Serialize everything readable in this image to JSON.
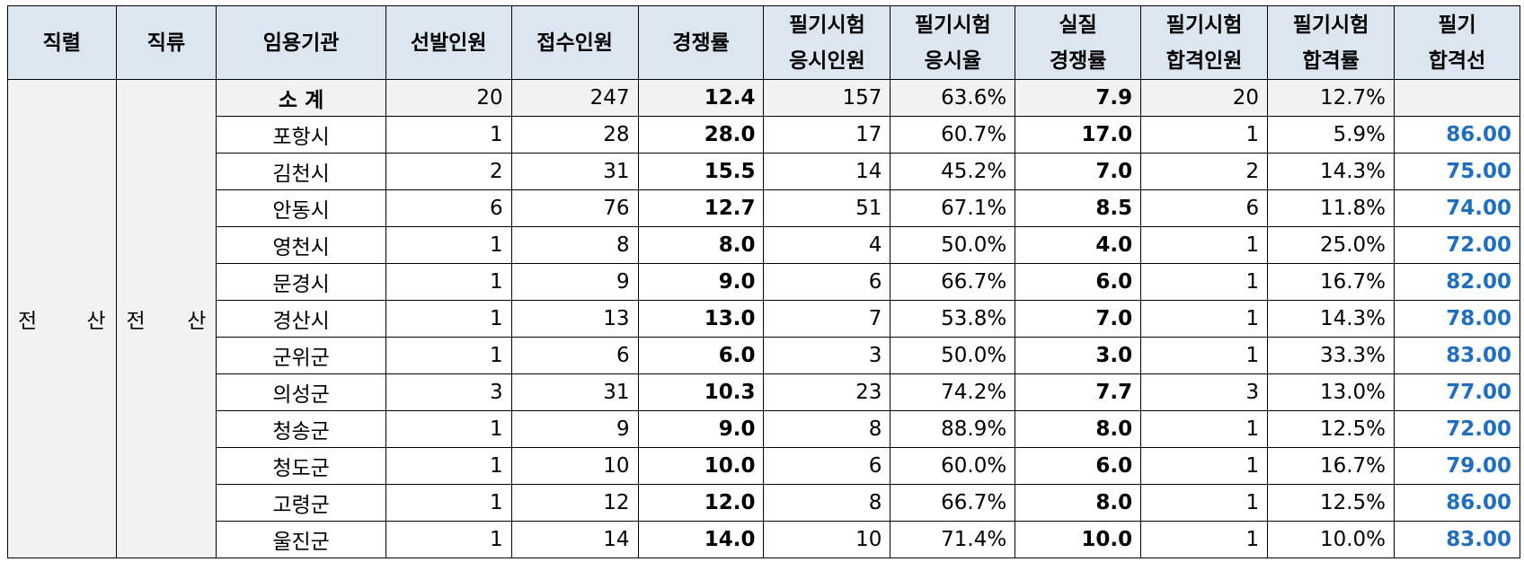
{
  "headers": [
    {
      "lines": [
        "직렬"
      ]
    },
    {
      "lines": [
        "직류"
      ]
    },
    {
      "lines": [
        "임용기관"
      ]
    },
    {
      "lines": [
        "선발인원"
      ]
    },
    {
      "lines": [
        "접수인원"
      ]
    },
    {
      "lines": [
        "경쟁률"
      ]
    },
    {
      "lines": [
        "필기시험",
        "응시인원"
      ]
    },
    {
      "lines": [
        "필기시험",
        "응시율"
      ]
    },
    {
      "lines": [
        "실질",
        "경쟁률"
      ]
    },
    {
      "lines": [
        "필기시험",
        "합격인원"
      ]
    },
    {
      "lines": [
        "필기시험",
        "합격률"
      ]
    },
    {
      "lines": [
        "필기",
        "합격선"
      ]
    }
  ],
  "group": {
    "series": [
      "전",
      "산"
    ],
    "category": [
      "전",
      "산"
    ]
  },
  "subtotal": {
    "agency": "소  계",
    "selected": "20",
    "applicants": "247",
    "ratio": "12.4",
    "exam_takers": "157",
    "take_rate": "63.6%",
    "real_ratio": "7.9",
    "passed": "20",
    "pass_rate": "12.7%",
    "cutoff": ""
  },
  "rows": [
    {
      "agency": "포항시",
      "selected": "1",
      "applicants": "28",
      "ratio": "28.0",
      "exam_takers": "17",
      "take_rate": "60.7%",
      "real_ratio": "17.0",
      "passed": "1",
      "pass_rate": "5.9%",
      "cutoff": "86.00"
    },
    {
      "agency": "김천시",
      "selected": "2",
      "applicants": "31",
      "ratio": "15.5",
      "exam_takers": "14",
      "take_rate": "45.2%",
      "real_ratio": "7.0",
      "passed": "2",
      "pass_rate": "14.3%",
      "cutoff": "75.00"
    },
    {
      "agency": "안동시",
      "selected": "6",
      "applicants": "76",
      "ratio": "12.7",
      "exam_takers": "51",
      "take_rate": "67.1%",
      "real_ratio": "8.5",
      "passed": "6",
      "pass_rate": "11.8%",
      "cutoff": "74.00"
    },
    {
      "agency": "영천시",
      "selected": "1",
      "applicants": "8",
      "ratio": "8.0",
      "exam_takers": "4",
      "take_rate": "50.0%",
      "real_ratio": "4.0",
      "passed": "1",
      "pass_rate": "25.0%",
      "cutoff": "72.00"
    },
    {
      "agency": "문경시",
      "selected": "1",
      "applicants": "9",
      "ratio": "9.0",
      "exam_takers": "6",
      "take_rate": "66.7%",
      "real_ratio": "6.0",
      "passed": "1",
      "pass_rate": "16.7%",
      "cutoff": "82.00"
    },
    {
      "agency": "경산시",
      "selected": "1",
      "applicants": "13",
      "ratio": "13.0",
      "exam_takers": "7",
      "take_rate": "53.8%",
      "real_ratio": "7.0",
      "passed": "1",
      "pass_rate": "14.3%",
      "cutoff": "78.00"
    },
    {
      "agency": "군위군",
      "selected": "1",
      "applicants": "6",
      "ratio": "6.0",
      "exam_takers": "3",
      "take_rate": "50.0%",
      "real_ratio": "3.0",
      "passed": "1",
      "pass_rate": "33.3%",
      "cutoff": "83.00"
    },
    {
      "agency": "의성군",
      "selected": "3",
      "applicants": "31",
      "ratio": "10.3",
      "exam_takers": "23",
      "take_rate": "74.2%",
      "real_ratio": "7.7",
      "passed": "3",
      "pass_rate": "13.0%",
      "cutoff": "77.00"
    },
    {
      "agency": "청송군",
      "selected": "1",
      "applicants": "9",
      "ratio": "9.0",
      "exam_takers": "8",
      "take_rate": "88.9%",
      "real_ratio": "8.0",
      "passed": "1",
      "pass_rate": "12.5%",
      "cutoff": "72.00"
    },
    {
      "agency": "청도군",
      "selected": "1",
      "applicants": "10",
      "ratio": "10.0",
      "exam_takers": "6",
      "take_rate": "60.0%",
      "real_ratio": "6.0",
      "passed": "1",
      "pass_rate": "16.7%",
      "cutoff": "79.00"
    },
    {
      "agency": "고령군",
      "selected": "1",
      "applicants": "12",
      "ratio": "12.0",
      "exam_takers": "8",
      "take_rate": "66.7%",
      "real_ratio": "8.0",
      "passed": "1",
      "pass_rate": "12.5%",
      "cutoff": "86.00"
    },
    {
      "agency": "울진군",
      "selected": "1",
      "applicants": "14",
      "ratio": "14.0",
      "exam_takers": "10",
      "take_rate": "71.4%",
      "real_ratio": "10.0",
      "passed": "1",
      "pass_rate": "10.0%",
      "cutoff": "83.00"
    }
  ],
  "colors": {
    "header_bg": "#dce6f1",
    "subtotal_bg": "#f2f2f2",
    "cutoff_text": "#1f6fc0",
    "border": "#000000"
  }
}
